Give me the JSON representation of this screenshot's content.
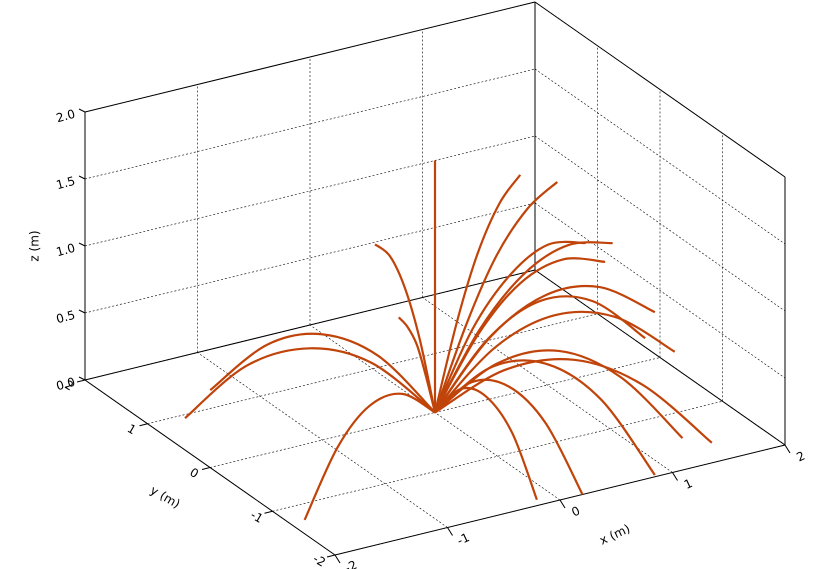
{
  "chart_data": {
    "type": "line3d",
    "xlabel": "x (m)",
    "ylabel": "y (m)",
    "zlabel": "z (m)",
    "xlim": [
      -2,
      2
    ],
    "xticks": [
      -2,
      -1,
      0,
      1,
      2
    ],
    "ylim": [
      -2,
      2
    ],
    "yticks": [
      -2,
      -1,
      0,
      1,
      2
    ],
    "zlim": [
      0,
      2
    ],
    "zticks": [
      {
        "value": 0,
        "label": "0.0"
      },
      {
        "value": 0.5,
        "label": "0.5"
      },
      {
        "value": 1,
        "label": "1.0"
      },
      {
        "value": 1.5,
        "label": "1.5"
      },
      {
        "value": 2,
        "label": "2.0"
      }
    ],
    "grid": true,
    "color": "#c0440a",
    "series": [
      {
        "x": [
          0,
          -0.47,
          -0.94,
          -1.4,
          -1.87
        ],
        "y": [
          0,
          -0.32,
          -0.64,
          -0.96,
          -1.28
        ],
        "z": [
          0,
          0.34,
          0.45,
          0.34,
          0
        ]
      },
      {
        "x": [
          0,
          -0.43,
          -0.85,
          -1.28,
          -1.7
        ],
        "y": [
          0,
          0.24,
          0.47,
          0.71,
          0.94
        ],
        "z": [
          0,
          0.38,
          0.5,
          0.38,
          0
        ]
      },
      {
        "x": [
          0,
          -0.32,
          -0.64,
          -0.95,
          -1.27
        ],
        "y": [
          0,
          0.33,
          0.66,
          0.98,
          1.31
        ],
        "z": [
          0,
          0.38,
          0.5,
          0.38,
          0
        ]
      },
      {
        "x": [
          0,
          -0.05,
          -0.1,
          -0.15,
          -0.2
        ],
        "y": [
          0,
          0.15,
          0.3,
          0.45,
          0.6
        ],
        "z": [
          0,
          0.5,
          0.85,
          1.05,
          1.1
        ]
      },
      {
        "x": [
          0,
          -0.03,
          -0.05,
          -0.08,
          -0.1
        ],
        "y": [
          0,
          0.1,
          0.2,
          0.3,
          0.4
        ],
        "z": [
          0,
          0.26,
          0.45,
          0.56,
          0.6
        ]
      },
      {
        "x": [
          0,
          0.2,
          0.39,
          0.59,
          0.78
        ],
        "y": [
          0,
          0.01,
          0.02,
          0.03,
          0.04
        ],
        "z": [
          0,
          0.63,
          1.1,
          1.43,
          1.6
        ]
      },
      {
        "x": [
          0,
          0.26,
          0.51,
          0.77,
          1.02
        ],
        "y": [
          0,
          -0.03,
          -0.06,
          -0.09,
          -0.12
        ],
        "z": [
          0,
          0.61,
          1.08,
          1.39,
          1.55
        ]
      },
      {
        "x": [
          0,
          0.3,
          0.6,
          0.9,
          1.2
        ],
        "y": [
          0,
          -0.06,
          -0.13,
          -0.19,
          -0.25
        ],
        "z": [
          0,
          0.58,
          0.95,
          1.13,
          1.1
        ]
      },
      {
        "x": [
          0,
          0.36,
          0.72,
          1.08,
          1.44
        ],
        "y": [
          0,
          -0.06,
          -0.13,
          -0.19,
          -0.25
        ],
        "z": [
          0,
          0.56,
          0.93,
          1.09,
          1.05
        ]
      },
      {
        "x": [
          0,
          0.34,
          0.67,
          1.01,
          1.34
        ],
        "y": [
          0,
          -0.08,
          -0.16,
          -0.23,
          -0.31
        ],
        "z": [
          0,
          0.54,
          0.88,
          1.01,
          0.95
        ]
      },
      {
        "x": [
          0,
          0.38,
          0.76,
          1.13,
          1.51
        ],
        "y": [
          0,
          -0.2,
          -0.4,
          -0.6,
          -0.8
        ],
        "z": [
          0,
          0.55,
          0.85,
          0.9,
          0.7
        ]
      },
      {
        "x": [
          0,
          0.38,
          0.76,
          1.14,
          1.52
        ],
        "y": [
          0,
          -0.28,
          -0.55,
          -0.83,
          -1.1
        ],
        "z": [
          0,
          0.5,
          0.75,
          0.75,
          0.5
        ]
      },
      {
        "x": [
          0,
          0.35,
          0.7,
          1.04,
          1.39
        ],
        "y": [
          0,
          -0.22,
          -0.43,
          -0.65,
          -0.86
        ],
        "z": [
          0,
          0.55,
          0.83,
          0.83,
          0.55
        ]
      },
      {
        "x": [
          0,
          0.22,
          0.43,
          0.65,
          0.86
        ],
        "y": [
          0,
          -0.49,
          -0.99,
          -1.48,
          -1.97
        ],
        "z": [
          0,
          0.45,
          0.6,
          0.45,
          0
        ]
      },
      {
        "x": [
          0,
          0.05,
          0.1,
          0.15,
          0.2
        ],
        "y": [
          0,
          -0.5,
          -1,
          -1.5,
          -2
        ],
        "z": [
          0,
          0.38,
          0.5,
          0.38,
          0
        ]
      },
      {
        "x": [
          0,
          -0.04,
          -0.08,
          -0.11,
          -0.15
        ],
        "y": [
          0,
          -0.48,
          -0.95,
          -1.43,
          -1.9
        ],
        "z": [
          0,
          0.34,
          0.45,
          0.34,
          0
        ]
      },
      {
        "x": [
          0,
          0.34,
          0.68,
          1.01,
          1.35
        ],
        "y": [
          0,
          -0.5,
          -1,
          -1.5,
          -2
        ],
        "z": [
          0,
          0.41,
          0.58,
          0.49,
          0.15
        ]
      },
      {
        "x": [
          0,
          0.3,
          0.6,
          0.9,
          1.2
        ],
        "y": [
          0,
          -0.45,
          -0.9,
          -1.35,
          -1.8
        ],
        "z": [
          0,
          0.45,
          0.63,
          0.52,
          0.15
        ]
      },
      {
        "x": [
          0,
          0
        ],
        "y": [
          0,
          0
        ],
        "z": [
          0,
          1.88
        ]
      }
    ]
  }
}
